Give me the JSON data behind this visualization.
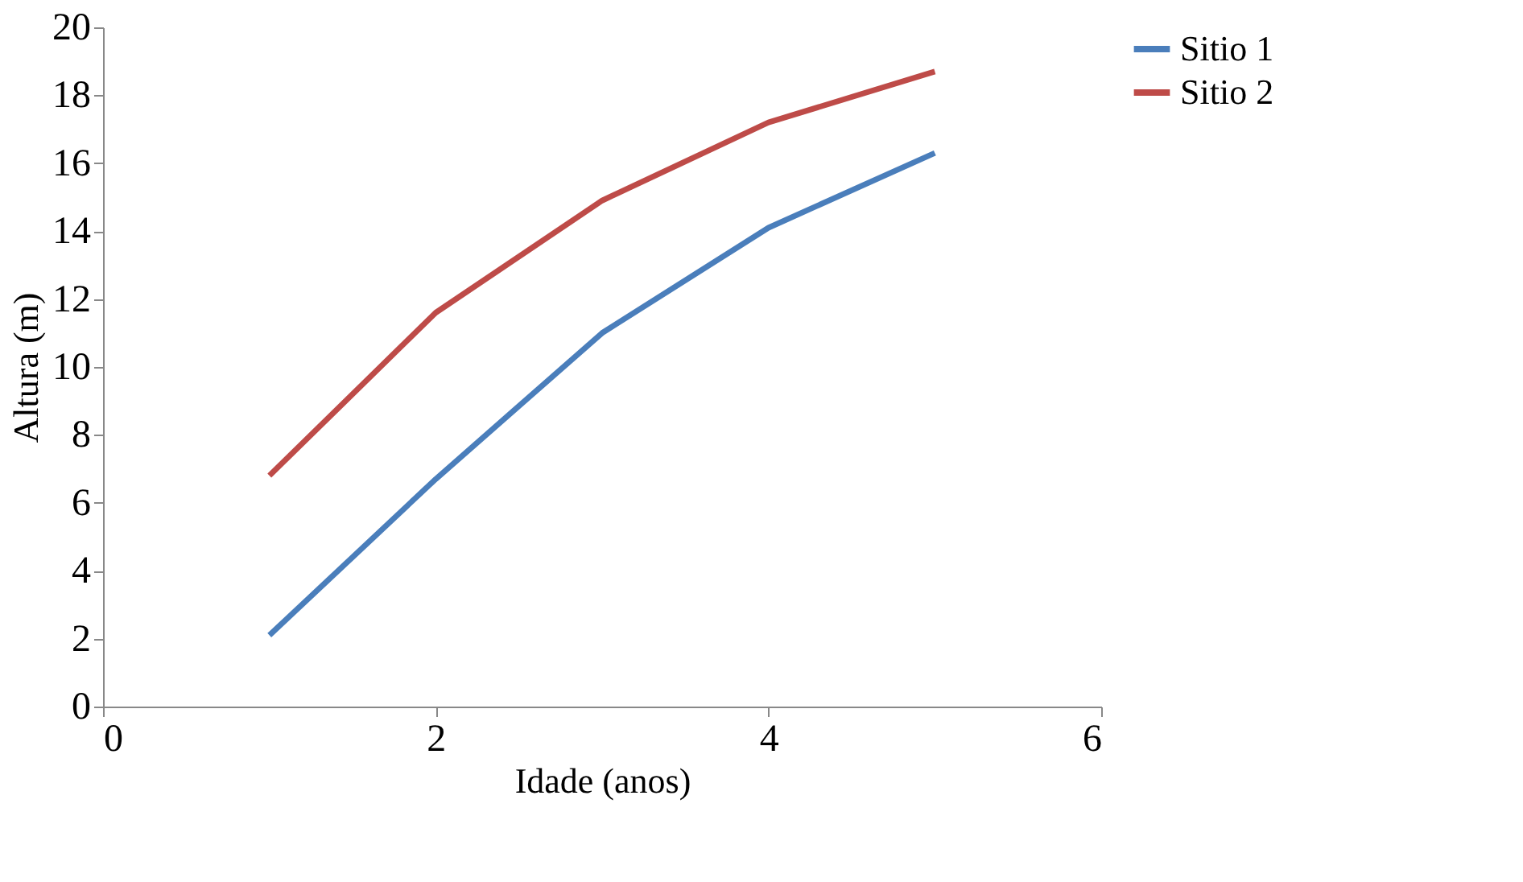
{
  "chart_data": {
    "type": "line",
    "xlabel": "Idade (anos)",
    "ylabel": "Altura (m)",
    "x": [
      1,
      2,
      3,
      4,
      5
    ],
    "series": [
      {
        "name": "Sitio 1",
        "color": "#4a7ebb",
        "values": [
          2.1,
          6.7,
          11.0,
          14.1,
          16.3
        ]
      },
      {
        "name": "Sitio 2",
        "color": "#be4b48",
        "values": [
          6.8,
          11.6,
          14.9,
          17.2,
          18.7
        ]
      }
    ],
    "xlim": [
      0,
      6
    ],
    "xticks": [
      0,
      2,
      4,
      6
    ],
    "ylim": [
      0,
      20
    ],
    "yticks": [
      0,
      2,
      4,
      6,
      8,
      10,
      12,
      14,
      16,
      18,
      20
    ],
    "grid": false,
    "legend": "right",
    "marker": "none",
    "line_style": "solid"
  }
}
